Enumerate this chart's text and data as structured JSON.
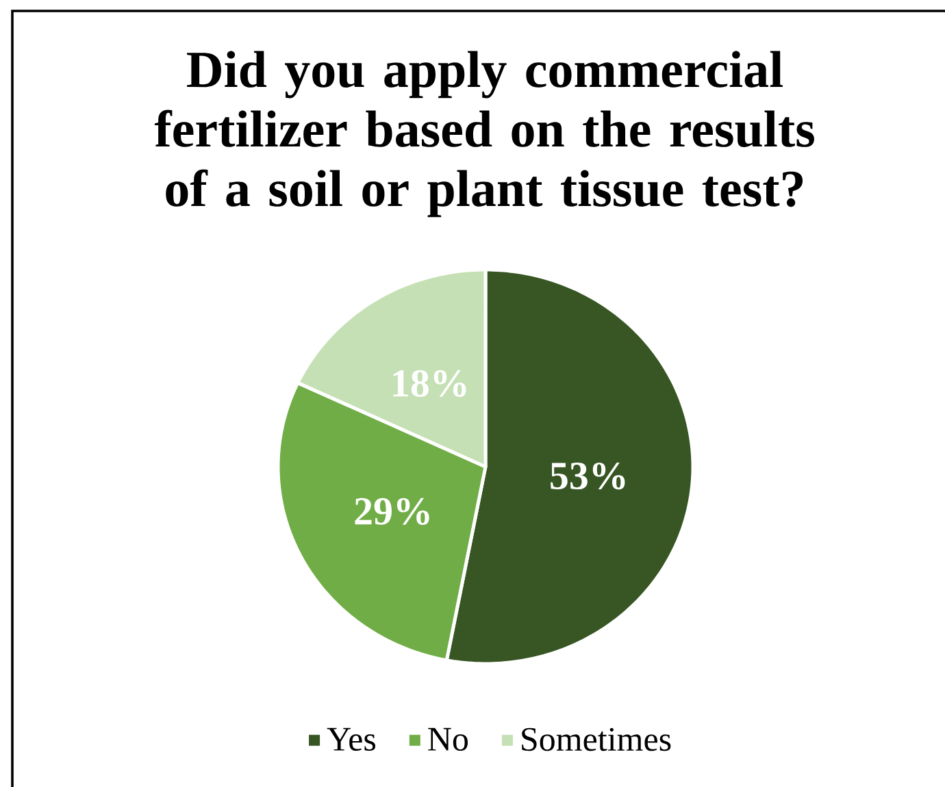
{
  "chart_data": {
    "type": "pie",
    "title": "Did you apply commercial fertilizer based on the results of a soil or plant tissue test?",
    "categories": [
      "Yes",
      "No",
      "Sometimes"
    ],
    "values": [
      53,
      29,
      18
    ],
    "colors": [
      "#375623",
      "#70ad47",
      "#c5e0b4"
    ],
    "value_labels": [
      "53%",
      "29%",
      "18%"
    ],
    "legend": "bottom"
  }
}
